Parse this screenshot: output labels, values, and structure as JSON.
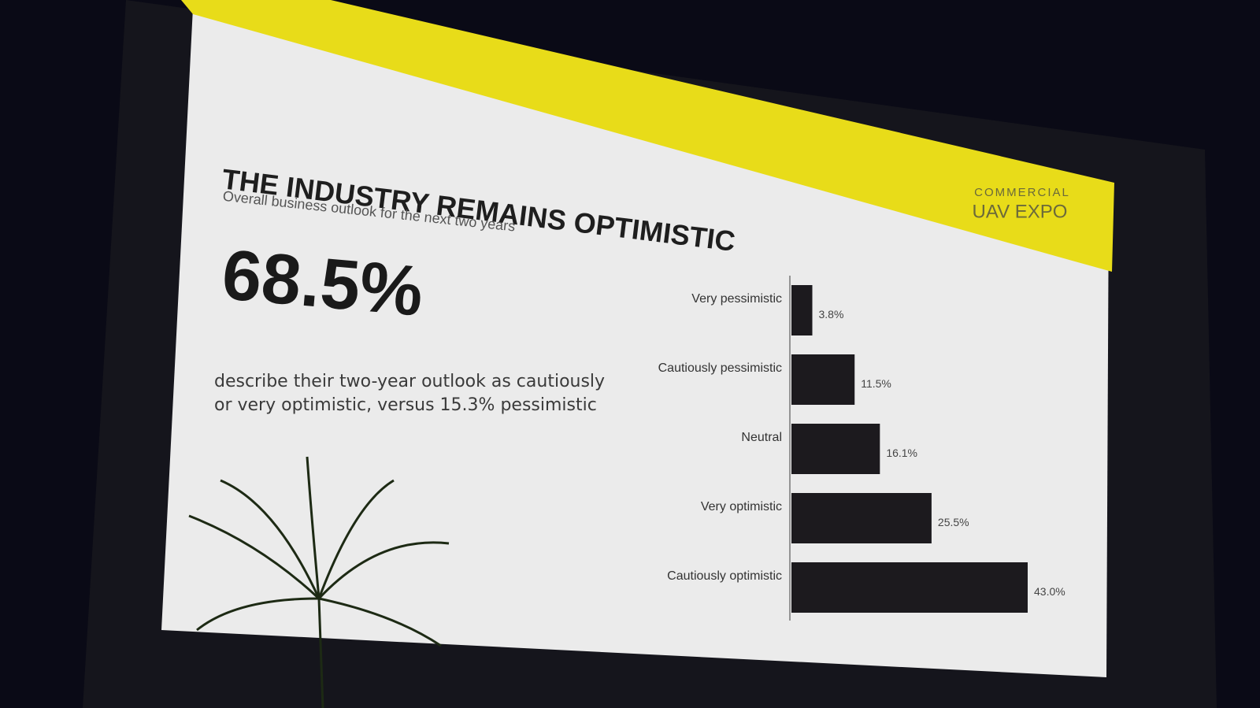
{
  "slide": {
    "title": "THE INDUSTRY REMAINS OPTIMISTIC",
    "subtitle": "Overall business outlook for the next two years",
    "stat": "68.5%",
    "description": "describe their two-year outlook as cautiously or very optimistic, versus 15.3% pessimistic",
    "logo_top": "COMMERCIAL",
    "logo_bottom": "UAV EXPO"
  },
  "chart_data": {
    "type": "hbar",
    "categories": [
      "Very pessimistic",
      "Cautiously pessimistic",
      "Neutral",
      "Very optimistic",
      "Cautiously optimistic"
    ],
    "values": [
      3.8,
      11.5,
      16.1,
      25.5,
      43.0
    ],
    "value_labels": [
      "3.8%",
      "11.5%",
      "16.1%",
      "25.5%",
      "43.0%"
    ],
    "color": "#1c1a1e"
  }
}
